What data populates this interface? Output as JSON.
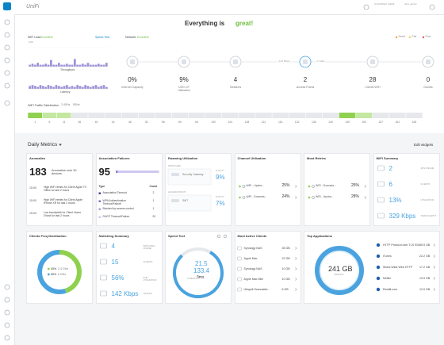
{
  "header": {
    "brand": "UniFi",
    "device": "CLOUDKEY GEN2",
    "user": "ubnt_admin"
  },
  "status": {
    "prefix": "Everything is ",
    "word": "great!"
  },
  "summary_bar": {
    "wifi_load_label": "WiFi Load:",
    "wifi_load": "Excellent",
    "speed_test": "Speed Test",
    "network_label": "Network:",
    "network": "Excellent",
    "legend": [
      {
        "label": "Good",
        "color": "#f5a623"
      },
      {
        "label": "Fair",
        "color": "#f8d34a"
      },
      {
        "label": "Poor",
        "color": "#e8505b"
      }
    ]
  },
  "throughput": {
    "type": "bar",
    "ylim": [
      0,
      10
    ],
    "yticks": [
      {
        "value": 10,
        "label": "10M"
      }
    ],
    "series": [
      {
        "name": "Throughput",
        "color": "#9d92d9",
        "values": [
          1,
          1.5,
          1,
          2,
          1,
          1,
          1.5,
          1,
          3.5,
          1,
          1,
          2,
          1,
          1,
          1.5,
          1,
          1,
          4,
          1,
          1,
          1.5,
          1,
          2,
          1,
          1,
          1,
          1.5,
          1,
          1,
          2
        ]
      },
      {
        "name": "Latency",
        "color": "#9d92d9",
        "values": [
          1.5,
          2,
          1.5,
          1,
          2,
          1.5,
          1,
          2,
          1.5,
          1,
          2,
          1.5,
          1,
          1.5,
          2,
          1,
          1.5,
          1,
          2,
          1.5,
          1,
          2,
          1.5,
          1,
          1.5,
          2,
          1,
          1.5,
          2,
          1
        ]
      }
    ]
  },
  "topology": {
    "devices": [
      {
        "value": "0%",
        "label": "Internet Capacity"
      },
      {
        "value": "9%",
        "label": "USG CP Utilization"
      },
      {
        "value": 4,
        "label": "Switches"
      },
      {
        "value": 2,
        "label": "Access Points"
      },
      {
        "value": 28,
        "label": "Clients WiFi"
      },
      {
        "value": 0,
        "label": "Guests"
      }
    ],
    "links": [
      "124 Mbps",
      "1 Gbps"
    ]
  },
  "traffic": {
    "title": "WiFi Traffic Distribution",
    "bands": [
      "2.4GHz",
      "5GHz"
    ],
    "channels": [
      {
        "channel": 1,
        "color": "#8fd14f"
      },
      {
        "channel": 6,
        "color": "#c4e8a1"
      },
      {
        "channel": 11,
        "color": "#c4e8a1"
      },
      {
        "channel": 36,
        "color": "#e6e8eb"
      },
      {
        "channel": 40,
        "color": "#e6e8eb"
      },
      {
        "channel": 44,
        "color": "#e6e8eb"
      },
      {
        "channel": 48,
        "color": "#e6e8eb"
      },
      {
        "channel": 52,
        "color": "#e6e8eb"
      },
      {
        "channel": 56,
        "color": "#e6e8eb"
      },
      {
        "channel": 60,
        "color": "#e6e8eb"
      },
      {
        "channel": 64,
        "color": "#e6e8eb"
      },
      {
        "channel": 100,
        "color": "#e6e8eb"
      },
      {
        "channel": 104,
        "color": "#e6e8eb"
      },
      {
        "channel": 108,
        "color": "#e6e8eb"
      },
      {
        "channel": 112,
        "color": "#e6e8eb"
      },
      {
        "channel": 116,
        "color": "#e6e8eb"
      },
      {
        "channel": 132,
        "color": "#e6e8eb"
      },
      {
        "channel": 136,
        "color": "#e6e8eb"
      },
      {
        "channel": 140,
        "color": "#e6e8eb"
      },
      {
        "channel": 149,
        "color": "#8fd14f"
      },
      {
        "channel": 153,
        "color": "#c4e8a1"
      },
      {
        "channel": 157,
        "color": "#e6e8eb"
      },
      {
        "channel": 161,
        "color": "#e6e8eb"
      },
      {
        "channel": 165,
        "color": "#e6e8eb"
      }
    ]
  },
  "daily": {
    "title": "Daily Metrics",
    "edit": "Edit widgets"
  },
  "anomalies": {
    "title": "Anomalies",
    "count": 183,
    "description": "Anomalies over 30 devices",
    "items": [
      {
        "time": "15:00",
        "text": "High WiFi retries for Client Apple TV Office for last 2 hours"
      },
      {
        "time": "15:00",
        "text": "High WiFi retries for Client Apple iPhone XR for last 2 hours"
      },
      {
        "time": "15:00",
        "text": "Low bandwidth for Client Home Ghost for last 2 hours"
      }
    ]
  },
  "association": {
    "title": "Association Failures",
    "count": 95,
    "header": [
      "Type",
      "Count"
    ],
    "rows": [
      {
        "type": "Association Timeout",
        "count": 2,
        "color": "#4b3f99"
      },
      {
        "type": "WPA Authentication Timeout/Failure",
        "count": 1,
        "color": "#7a6fc9"
      },
      {
        "type": "Blocked by access control",
        "count": 1,
        "color": "#a79ee0"
      },
      {
        "type": "DHCP Timeout/Failure",
        "count": 91,
        "color": "#cdc8ef"
      }
    ]
  },
  "roaming": {
    "title": "Roaming Utilization",
    "sections": [
      {
        "label": "SWITCHES",
        "name": "Security Gateway",
        "metric": "UTILITY",
        "value": "9%"
      },
      {
        "label": "ACCESS POINT",
        "name": "SMT",
        "metric": "UTILITY",
        "value": "7%"
      }
    ]
  },
  "channel_util": {
    "title": "Channel Utilization",
    "rows": [
      {
        "name": "WiFi - Upstra...",
        "value": "25%"
      },
      {
        "name": "WiFi - Downsta...",
        "value": "24%"
      }
    ]
  },
  "retries": {
    "title": "Most Retries",
    "rows": [
      {
        "name": "WiFi - Downsta...",
        "value": "25%"
      },
      {
        "name": "WiFi - Upstra...",
        "value": "28%"
      }
    ]
  },
  "wifi_summary": {
    "title": "WiFi Summary",
    "rows": [
      {
        "value": "2",
        "label": "APS ONLINE"
      },
      {
        "value": "6",
        "label": "CLIENTS"
      },
      {
        "value": "13%",
        "label": "UTILIZATION"
      },
      {
        "value": "329 Kbps",
        "label": "THROUGHPUT"
      }
    ]
  },
  "clients_freq": {
    "title": "Clients Freq Distribution",
    "names": [
      "2.4 GHz",
      "5 GHz"
    ],
    "values": [
      45,
      55
    ],
    "value_labels": [
      "45%",
      "55%"
    ],
    "colors": [
      "#8fd14f",
      "#4aa3df"
    ]
  },
  "switching": {
    "title": "Switching Summary",
    "rows": [
      {
        "value": "4",
        "label": "SWITCHES ONLINE"
      },
      {
        "value": "15",
        "label": "CLIENTS"
      },
      {
        "value": "56%",
        "label": "POE UTILIZATION"
      },
      {
        "value": "142 Kbps",
        "label": "TRAFFIC"
      }
    ]
  },
  "speed_test": {
    "title": "Speed Test",
    "download": "21.5",
    "upload": "133.4",
    "latency_label": "LATENCY",
    "latency": "3ms"
  },
  "active_clients": {
    "title": "Most Active Clients",
    "rows": [
      {
        "name": "Synology NAS",
        "value": "35 GB"
      },
      {
        "name": "Apple Mac",
        "value": "22 GB"
      },
      {
        "name": "Synology NAS",
        "value": "10 GB"
      },
      {
        "name": "Apple Mac Mini",
        "value": "10 GB"
      },
      {
        "name": "Ubiquiti Scannable...",
        "value": "6 GB"
      }
    ]
  },
  "top_apps": {
    "title": "Top Applications",
    "total": "241 GB",
    "total_label": "TRAFFIC",
    "rows": [
      {
        "name": "HTTP Protocol over TLS SSL",
        "value": "95.9 GB"
      },
      {
        "name": "iTunes",
        "value": "22.2 GB"
      },
      {
        "name": "World Wide Web HTTP",
        "value": "17.2 GB"
      },
      {
        "name": "Netflix",
        "value": "13.9 GB"
      },
      {
        "name": "Reddit.com",
        "value": "12.0 GB"
      }
    ]
  }
}
